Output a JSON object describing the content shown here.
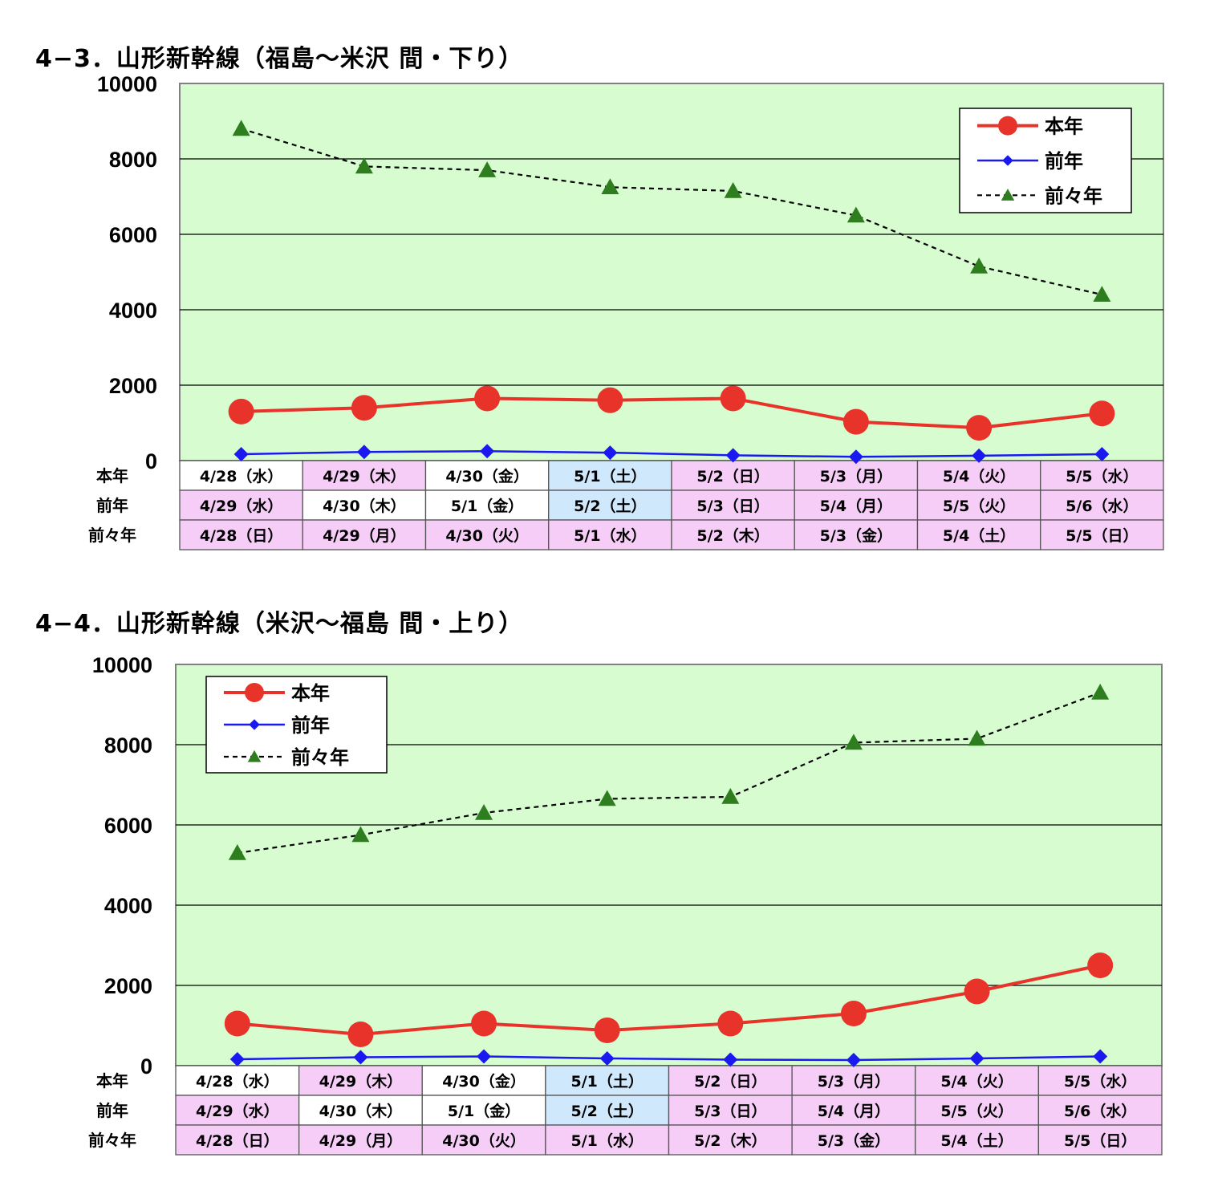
{
  "colors": {
    "plot_bg": "#d6fcd0",
    "this_year": "#e8332a",
    "last_year": "#1a1af0",
    "two_years_ago_line": "#000000",
    "two_years_ago_marker": "#2e7d1e",
    "cell_white": "#ffffff",
    "cell_pink": "#f6cdf7",
    "cell_blue": "#cfe8fb"
  },
  "chart_data": [
    {
      "type": "line",
      "title": "4−3．山形新幹線（福島〜米沢 間・下り）",
      "ylim": [
        0,
        10000
      ],
      "yticks": [
        "10000",
        "8000",
        "6000",
        "4000",
        "2000",
        "0"
      ],
      "grid": true,
      "legend_position": "top-right",
      "series": [
        {
          "name": "本年",
          "values": [
            1300,
            1400,
            1650,
            1600,
            1650,
            1030,
            870,
            1250
          ]
        },
        {
          "name": "前年",
          "values": [
            170,
            230,
            250,
            210,
            140,
            100,
            130,
            170
          ]
        },
        {
          "name": "前々年",
          "values": [
            8800,
            7800,
            7700,
            7250,
            7150,
            6500,
            5150,
            4400
          ]
        }
      ],
      "table": {
        "row_labels": [
          "本年",
          "前年",
          "前々年"
        ],
        "rows": [
          [
            "4/28（水）",
            "4/29（木）",
            "4/30（金）",
            "5/1（土）",
            "5/2（日）",
            "5/3（月）",
            "5/4（火）",
            "5/5（水）"
          ],
          [
            "4/29（水）",
            "4/30（木）",
            "5/1（金）",
            "5/2（土）",
            "5/3（日）",
            "5/4（月）",
            "5/5（火）",
            "5/6（水）"
          ],
          [
            "4/28（日）",
            "4/29（月）",
            "4/30（火）",
            "5/1（水）",
            "5/2（木）",
            "5/3（金）",
            "5/4（土）",
            "5/5（日）"
          ]
        ],
        "colors": [
          [
            "w",
            "p",
            "w",
            "b",
            "p",
            "p",
            "p",
            "p"
          ],
          [
            "p",
            "w",
            "w",
            "b",
            "p",
            "p",
            "p",
            "p"
          ],
          [
            "p",
            "p",
            "p",
            "p",
            "p",
            "p",
            "p",
            "p"
          ]
        ]
      }
    },
    {
      "type": "line",
      "title": "4−4．山形新幹線（米沢〜福島 間・上り）",
      "ylim": [
        0,
        10000
      ],
      "yticks": [
        "10000",
        "8000",
        "6000",
        "4000",
        "2000",
        "0"
      ],
      "grid": true,
      "legend_position": "top-left",
      "series": [
        {
          "name": "本年",
          "values": [
            1050,
            780,
            1050,
            880,
            1050,
            1300,
            1850,
            2500
          ]
        },
        {
          "name": "前年",
          "values": [
            160,
            210,
            230,
            180,
            150,
            140,
            180,
            230
          ]
        },
        {
          "name": "前々年",
          "values": [
            5300,
            5750,
            6300,
            6650,
            6700,
            8050,
            8150,
            9300
          ]
        }
      ],
      "table": {
        "row_labels": [
          "本年",
          "前年",
          "前々年"
        ],
        "rows": [
          [
            "4/28（水）",
            "4/29（木）",
            "4/30（金）",
            "5/1（土）",
            "5/2（日）",
            "5/3（月）",
            "5/4（火）",
            "5/5（水）"
          ],
          [
            "4/29（水）",
            "4/30（木）",
            "5/1（金）",
            "5/2（土）",
            "5/3（日）",
            "5/4（月）",
            "5/5（火）",
            "5/6（水）"
          ],
          [
            "4/28（日）",
            "4/29（月）",
            "4/30（火）",
            "5/1（水）",
            "5/2（木）",
            "5/3（金）",
            "5/4（土）",
            "5/5（日）"
          ]
        ],
        "colors": [
          [
            "w",
            "p",
            "w",
            "b",
            "p",
            "p",
            "p",
            "p"
          ],
          [
            "p",
            "w",
            "w",
            "b",
            "p",
            "p",
            "p",
            "p"
          ],
          [
            "p",
            "p",
            "p",
            "p",
            "p",
            "p",
            "p",
            "p"
          ]
        ]
      }
    }
  ]
}
